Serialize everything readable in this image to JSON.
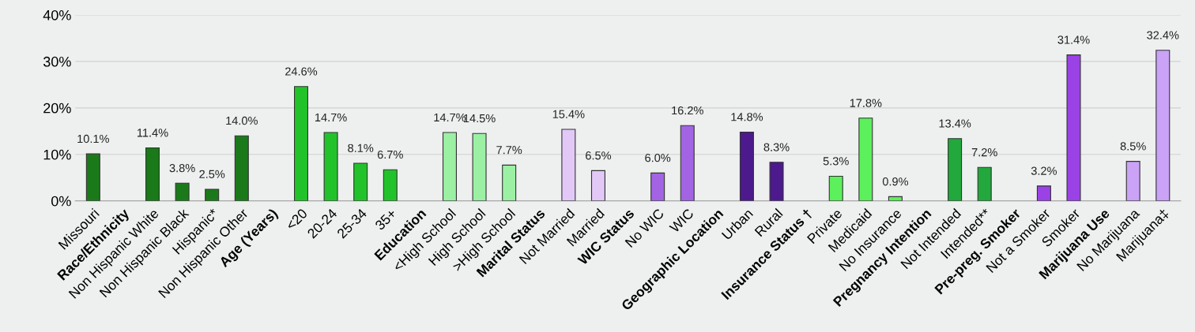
{
  "chart_data": {
    "type": "bar",
    "categories": [
      "Missouri",
      "Race/Ethnicity",
      "Non Hispanic White",
      "Non Hispanic Black",
      "Hispanic*",
      "Non Hispanic Other",
      "Age (Years)",
      "<20",
      "20-24",
      "25-34",
      "35+",
      "Education",
      "<High School",
      "High School",
      ">High School",
      "Marital Status",
      "Not Married",
      "Married",
      "WIC Status",
      "No WIC",
      "WIC",
      "Geographic Location",
      "Urban",
      "Rural",
      "Insurance Status †",
      "Private",
      "Medicaid",
      "No Insurance",
      "Pregnancy Intention",
      "Not Intended",
      "Intended**",
      "Pre-preg. Smoker",
      "Not a Smoker",
      "Smoker",
      "Marijuana Use",
      "No Marijuana",
      "Marijuana‡"
    ],
    "values": [
      10.1,
      null,
      11.4,
      3.8,
      2.5,
      14.0,
      null,
      24.6,
      14.7,
      8.1,
      6.7,
      null,
      14.7,
      14.5,
      7.7,
      null,
      15.4,
      6.5,
      null,
      6.0,
      16.2,
      null,
      14.8,
      8.3,
      null,
      5.3,
      17.8,
      0.9,
      null,
      13.4,
      7.2,
      null,
      3.2,
      31.4,
      null,
      8.5,
      32.4
    ],
    "value_labels": [
      "10.1%",
      null,
      "11.4%",
      "3.8%",
      "2.5%",
      "14.0%",
      null,
      "24.6%",
      "14.7%",
      "8.1%",
      "6.7%",
      null,
      "14.7%",
      "14.5%",
      "7.7%",
      null,
      "15.4%",
      "6.5%",
      null,
      "6.0%",
      "16.2%",
      null,
      "14.8%",
      "8.3%",
      null,
      "5.3%",
      "17.8%",
      "0.9%",
      null,
      "13.4%",
      "7.2%",
      null,
      "3.2%",
      "31.4%",
      null,
      "8.5%",
      "32.4%"
    ],
    "colors": [
      "#1a7a1a",
      "#1a7a1a",
      "#1a7a1a",
      "#1a7a1a",
      "#1a7a1a",
      "#1a7a1a",
      "#22c32a",
      "#22c32a",
      "#22c32a",
      "#22c32a",
      "#22c32a",
      "#9cf0a4",
      "#9cf0a4",
      "#9cf0a4",
      "#9cf0a4",
      "#e2c8f7",
      "#e2c8f7",
      "#e2c8f7",
      "#a264e3",
      "#a264e3",
      "#a264e3",
      "#4c1a8c",
      "#4c1a8c",
      "#4c1a8c",
      "#5cf05c",
      "#5cf05c",
      "#5cf05c",
      "#5cf05c",
      "#22a83c",
      "#22a83c",
      "#22a83c",
      "#9b42e6",
      "#9b42e6",
      "#9b42e6",
      "#caa2f6",
      "#caa2f6",
      "#caa2f6"
    ],
    "ylim": [
      0,
      40
    ],
    "yticks": [
      {
        "value": 0,
        "label": "0%"
      },
      {
        "value": 10,
        "label": "10%"
      },
      {
        "value": 20,
        "label": "20%"
      },
      {
        "value": 30,
        "label": "30%"
      },
      {
        "value": 40,
        "label": "40%"
      }
    ],
    "grid": "y"
  }
}
